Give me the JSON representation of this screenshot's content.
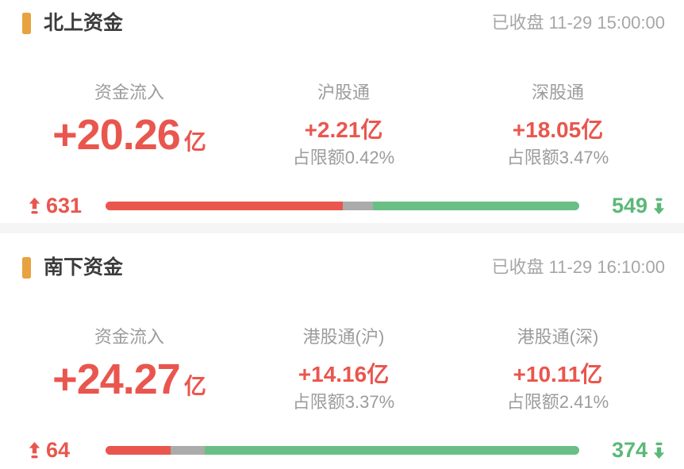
{
  "colors": {
    "accent_red": "#e9564e",
    "accent_green": "#5cb878",
    "bar_green": "#6abf85",
    "bar_gray": "#ababab",
    "marker_orange": "#e8a23f",
    "label_gray": "#9c9c9c",
    "title_dark": "#3c3c3c"
  },
  "sections": [
    {
      "title": "北上资金",
      "status": "已收盘 11-29 15:00:00",
      "inflow": {
        "label": "资金流入",
        "value": "+20.26",
        "unit": "亿"
      },
      "channels": [
        {
          "name": "沪股通",
          "value": "+2.21亿",
          "quota": "占限额0.42%"
        },
        {
          "name": "深股通",
          "value": "+18.05亿",
          "quota": "占限额3.47%"
        }
      ],
      "breadth": {
        "up": "631",
        "down": "549",
        "up_pct": 50,
        "flat_pct": 6.5,
        "down_pct": 43.5
      }
    },
    {
      "title": "南下资金",
      "status": "已收盘 11-29 16:10:00",
      "inflow": {
        "label": "资金流入",
        "value": "+24.27",
        "unit": "亿"
      },
      "channels": [
        {
          "name": "港股通(沪)",
          "value": "+14.16亿",
          "quota": "占限额3.37%"
        },
        {
          "name": "港股通(深)",
          "value": "+10.11亿",
          "quota": "占限额2.41%"
        }
      ],
      "breadth": {
        "up": "64",
        "down": "374",
        "up_pct": 13.7,
        "flat_pct": 7.3,
        "down_pct": 79
      }
    }
  ]
}
